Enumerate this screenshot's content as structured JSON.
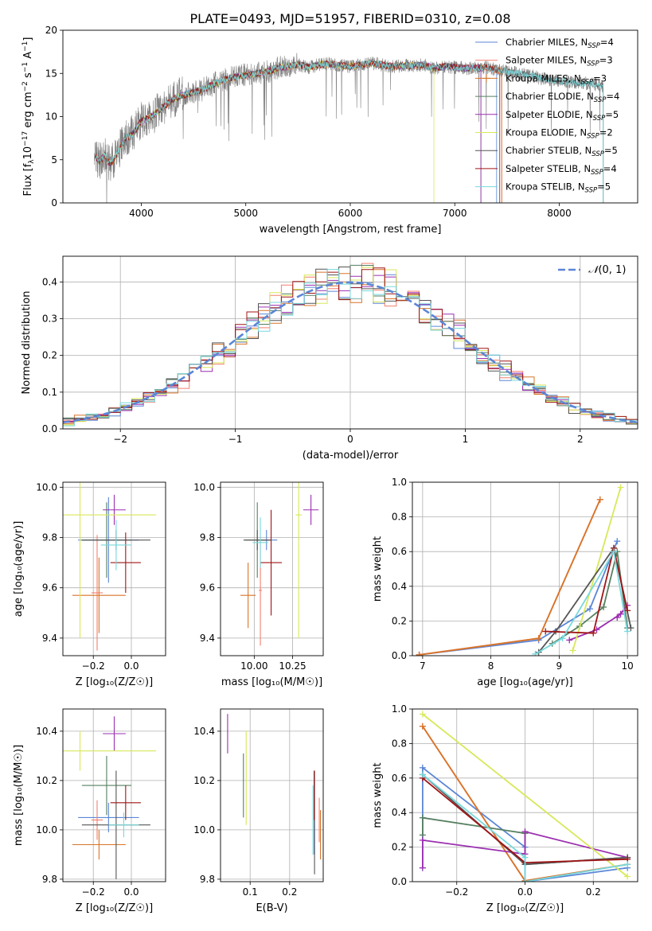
{
  "figure": {
    "title": "PLATE=0493, MJD=51957, FIBERID=0310, z=0.08"
  },
  "colors": {
    "chabrier_miles": "#5b86d6",
    "salpeter_miles": "#f47f6e",
    "kroupa_miles": "#d87428",
    "chabrier_elodie": "#567f60",
    "salpeter_elodie": "#9b2fb0",
    "kroupa_elodie": "#d8e85a",
    "chabrier_stelib": "#555555",
    "salpeter_stelib": "#a01416",
    "kroupa_stelib": "#78d8dc",
    "spectrum": "#808080",
    "gaussian": "#5b86d6"
  },
  "legend": {
    "entries": [
      {
        "prefix": "Chabrier MILES, N",
        "sub": "SSP",
        "suffix": "=4",
        "color": "#5b86d6",
        "marker": "none"
      },
      {
        "prefix": "Salpeter MILES, N",
        "sub": "SSP",
        "suffix": "=3",
        "color": "#f47f6e",
        "marker": "none"
      },
      {
        "prefix": "Kroupa MILES, N",
        "sub": "SSP",
        "suffix": "=3",
        "color": "#d87428",
        "marker": "plus"
      },
      {
        "prefix": "Chabrier ELODIE, N",
        "sub": "SSP",
        "suffix": "=4",
        "color": "#567f60",
        "marker": "none"
      },
      {
        "prefix": "Salpeter ELODIE, N",
        "sub": "SSP",
        "suffix": "=5",
        "color": "#9b2fb0",
        "marker": "none"
      },
      {
        "prefix": "Kroupa ELODIE, N",
        "sub": "SSP",
        "suffix": "=2",
        "color": "#d8e85a",
        "marker": "none"
      },
      {
        "prefix": "Chabrier STELIB, N",
        "sub": "SSP",
        "suffix": "=5",
        "color": "#555555",
        "marker": "none"
      },
      {
        "prefix": "Salpeter STELIB, N",
        "sub": "SSP",
        "suffix": "=4",
        "color": "#a01416",
        "marker": "none"
      },
      {
        "prefix": "Kroupa STELIB, N",
        "sub": "SSP",
        "suffix": "=5",
        "color": "#78d8dc",
        "marker": "none"
      }
    ]
  },
  "chart_data": [
    {
      "id": "spectrum",
      "type": "line",
      "title": "PLATE=0493, MJD=51957, FIBERID=0310, z=0.08",
      "xlabel": "wavelength [Angstrom, rest frame]",
      "ylabel": {
        "a": "Flux [f",
        "b": "λ",
        "c": "10",
        "d": "−17",
        "e": " erg cm",
        "f": "−2",
        "g": " s",
        "h": "−1",
        "i": " A",
        "j": "−1",
        "k": "]"
      },
      "xlim": [
        3250,
        8750
      ],
      "ylim": [
        0,
        20
      ],
      "xticks": [
        4000,
        5000,
        6000,
        7000,
        8000
      ],
      "yticks": [
        0,
        5,
        10,
        15,
        20
      ],
      "grid": false,
      "legend_position": "upper right",
      "x": [
        3550,
        3600,
        3650,
        3700,
        3750,
        3800,
        3850,
        3900,
        3950,
        4000,
        4100,
        4200,
        4300,
        4400,
        4500,
        4600,
        4700,
        4800,
        4900,
        5000,
        5100,
        5200,
        5300,
        5400,
        5500,
        5600,
        5700,
        5800,
        5900,
        6000,
        6100,
        6200,
        6300,
        6400,
        6500,
        6600,
        6700,
        6800,
        6900,
        7000,
        7100,
        7200,
        7300,
        7400,
        7500,
        7600,
        7700,
        7800,
        7900,
        8000,
        8100,
        8200,
        8300,
        8400
      ],
      "flux": [
        5.5,
        4.8,
        5.5,
        4.5,
        5.2,
        6.5,
        7.5,
        7.8,
        8.5,
        9.5,
        10.0,
        11.0,
        12.0,
        12.5,
        12.8,
        13.2,
        13.8,
        14.3,
        14.6,
        14.8,
        15.0,
        15.2,
        15.6,
        15.8,
        16.0,
        15.7,
        16.0,
        16.1,
        15.9,
        15.8,
        16.0,
        16.2,
        16.0,
        15.8,
        15.9,
        15.9,
        16.0,
        15.6,
        15.8,
        15.7,
        15.6,
        15.6,
        15.7,
        15.4,
        15.2,
        15.0,
        14.8,
        14.5,
        14.3,
        14.1,
        14.0,
        13.9,
        13.8,
        13.6
      ]
    },
    {
      "id": "residuals",
      "type": "histogram",
      "xlabel": "(data-model)/error",
      "ylabel": "Normed distribution",
      "xlim": [
        -2.5,
        2.5
      ],
      "ylim": [
        0,
        0.47
      ],
      "xticks": [
        -2,
        -1,
        0,
        1,
        2
      ],
      "yticks": [
        0.0,
        0.1,
        0.2,
        0.3,
        0.4
      ],
      "grid": true,
      "legend_position": "upper right",
      "gaussian_label_pre": "𝒩",
      "gaussian_label_post": "(0, 1)",
      "bin_width": 0.1
    },
    {
      "id": "age_vs_Z",
      "type": "scatter",
      "xlabel": "Z [log₁₀(Z/Z☉)]",
      "ylabel": "age  [log₁₀(age/yr)]",
      "xlim": [
        -0.36,
        0.18
      ],
      "ylim": [
        9.33,
        10.02
      ],
      "xticks": [
        -0.2,
        0.0
      ],
      "yticks": [
        9.4,
        9.6,
        9.8,
        10.0
      ],
      "grid": true,
      "points": [
        {
          "x": -0.12,
          "xerr": 0.16,
          "y": 9.79,
          "yerr": 0.17,
          "color": "#5b86d6"
        },
        {
          "x": -0.18,
          "xerr": 0.03,
          "y": 9.58,
          "yerr": 0.23,
          "color": "#f47f6e"
        },
        {
          "x": -0.17,
          "xerr": 0.14,
          "y": 9.57,
          "yerr": 0.15,
          "color": "#d87428"
        },
        {
          "x": -0.13,
          "xerr": 0.13,
          "y": 9.79,
          "yerr": 0.15,
          "color": "#567f60"
        },
        {
          "x": -0.09,
          "xerr": 0.06,
          "y": 9.91,
          "yerr": 0.06,
          "color": "#9b2fb0"
        },
        {
          "x": -0.27,
          "xerr": 0.4,
          "y": 9.89,
          "yerr": 0.49,
          "color": "#d8e85a"
        },
        {
          "x": -0.08,
          "xerr": 0.18,
          "y": 9.79,
          "yerr": 0.04,
          "color": "#555555"
        },
        {
          "x": -0.03,
          "xerr": 0.08,
          "y": 9.7,
          "yerr": 0.12,
          "color": "#a01416"
        },
        {
          "x": -0.08,
          "xerr": 0.08,
          "y": 9.77,
          "yerr": 0.1,
          "color": "#78d8dc"
        }
      ]
    },
    {
      "id": "age_vs_mass",
      "type": "scatter",
      "xlabel": "mass [log₁₀(M/M☉)]",
      "ylabel": "",
      "xlim": [
        9.78,
        10.45
      ],
      "ylim": [
        9.33,
        10.02
      ],
      "xticks": [
        10.0,
        10.25
      ],
      "yticks": [
        9.4,
        9.6,
        9.8,
        10.0
      ],
      "grid": true,
      "points": [
        {
          "x": 10.08,
          "xerr": 0.07,
          "y": 9.79,
          "yerr": 0.04,
          "color": "#5b86d6"
        },
        {
          "x": 10.04,
          "xerr": 0.01,
          "y": 9.59,
          "yerr": 0.22,
          "color": "#f47f6e"
        },
        {
          "x": 9.96,
          "xerr": 0.05,
          "y": 9.57,
          "yerr": 0.13,
          "color": "#d87428"
        },
        {
          "x": 10.02,
          "xerr": 0.08,
          "y": 9.79,
          "yerr": 0.15,
          "color": "#567f60"
        },
        {
          "x": 10.37,
          "xerr": 0.05,
          "y": 9.91,
          "yerr": 0.06,
          "color": "#9b2fb0"
        },
        {
          "x": 10.29,
          "xerr": 0.02,
          "y": 9.89,
          "yerr": 0.49,
          "color": "#d8e85a"
        },
        {
          "x": 10.02,
          "xerr": 0.09,
          "y": 9.79,
          "yerr": 0.04,
          "color": "#555555"
        },
        {
          "x": 10.11,
          "xerr": 0.07,
          "y": 9.7,
          "yerr": 0.21,
          "color": "#a01416"
        },
        {
          "x": 10.04,
          "xerr": 0.05,
          "y": 9.78,
          "yerr": 0.1,
          "color": "#78d8dc"
        }
      ]
    },
    {
      "id": "weights_vs_age",
      "type": "line",
      "xlabel": "age  [log₁₀(age/yr)]",
      "ylabel": "mass weight",
      "xlim": [
        6.85,
        10.15
      ],
      "ylim": [
        0,
        1.0
      ],
      "xticks": [
        7,
        8,
        9,
        10
      ],
      "yticks": [
        0.0,
        0.2,
        0.4,
        0.6,
        0.8,
        1.0
      ],
      "grid": true,
      "series": [
        {
          "color": "#5b86d6",
          "x": [
            6.95,
            8.7,
            9.45,
            9.85
          ],
          "y": [
            0.005,
            0.09,
            0.27,
            0.66
          ]
        },
        {
          "color": "#f47f6e",
          "x": [
            6.95,
            8.7,
            9.6
          ],
          "y": [
            0.005,
            0.1,
            0.9
          ]
        },
        {
          "color": "#d87428",
          "x": [
            6.95,
            8.7,
            9.6
          ],
          "y": [
            0.005,
            0.1,
            0.9
          ]
        },
        {
          "color": "#567f60",
          "x": [
            8.9,
            9.3,
            9.65,
            9.85,
            10.0
          ],
          "y": [
            0.07,
            0.17,
            0.28,
            0.6,
            0.16
          ]
        },
        {
          "color": "#9b2fb0",
          "x": [
            9.15,
            9.55,
            9.9,
            10.0,
            9.85
          ],
          "y": [
            0.09,
            0.15,
            0.24,
            0.29,
            0.22
          ]
        },
        {
          "color": "#d8e85a",
          "x": [
            9.2,
            9.9
          ],
          "y": [
            0.03,
            0.97
          ]
        },
        {
          "color": "#555555",
          "x": [
            8.7,
            8.95,
            9.8,
            10.05
          ],
          "y": [
            0.02,
            0.14,
            0.62,
            0.16
          ]
        },
        {
          "color": "#a01416",
          "x": [
            8.8,
            9.5,
            9.8,
            10.0
          ],
          "y": [
            0.14,
            0.13,
            0.62,
            0.26
          ]
        },
        {
          "color": "#78d8dc",
          "x": [
            8.65,
            9.05,
            9.8,
            10.0
          ],
          "y": [
            0.01,
            0.1,
            0.6,
            0.14
          ]
        }
      ]
    },
    {
      "id": "mass_vs_Z",
      "type": "scatter",
      "xlabel": "Z [log₁₀(Z/Z☉)]",
      "ylabel": "mass [log₁₀(M/M☉)]",
      "xlim": [
        -0.36,
        0.18
      ],
      "ylim": [
        9.79,
        10.49
      ],
      "xticks": [
        -0.2,
        0.0
      ],
      "yticks": [
        9.8,
        10.0,
        10.2,
        10.4
      ],
      "grid": true,
      "points": [
        {
          "x": -0.12,
          "xerr": 0.16,
          "y": 10.05,
          "yerr": 0.06,
          "color": "#5b86d6"
        },
        {
          "x": -0.18,
          "xerr": 0.03,
          "y": 10.04,
          "yerr": 0.08,
          "color": "#f47f6e"
        },
        {
          "x": -0.17,
          "xerr": 0.14,
          "y": 9.94,
          "yerr": 0.06,
          "color": "#d87428"
        },
        {
          "x": -0.13,
          "xerr": 0.13,
          "y": 10.18,
          "yerr": 0.12,
          "color": "#567f60"
        },
        {
          "x": -0.09,
          "xerr": 0.06,
          "y": 10.39,
          "yerr": 0.07,
          "color": "#9b2fb0"
        },
        {
          "x": -0.27,
          "xerr": 0.4,
          "y": 10.32,
          "yerr": 0.08,
          "color": "#d8e85a"
        },
        {
          "x": -0.08,
          "xerr": 0.18,
          "y": 10.02,
          "yerr": 0.22,
          "color": "#555555"
        },
        {
          "x": -0.03,
          "xerr": 0.08,
          "y": 10.11,
          "yerr": 0.07,
          "color": "#a01416"
        },
        {
          "x": -0.04,
          "xerr": 0.08,
          "y": 10.02,
          "yerr": 0.05,
          "color": "#78d8dc"
        }
      ]
    },
    {
      "id": "mass_vs_ebv",
      "type": "scatter",
      "xlabel": "E(B-V)",
      "ylabel": "",
      "xlim": [
        0.025,
        0.285
      ],
      "ylim": [
        9.79,
        10.49
      ],
      "xticks": [
        0.1,
        0.2
      ],
      "yticks": [
        9.8,
        10.0,
        10.2,
        10.4
      ],
      "grid": true,
      "points": [
        {
          "x": 0.262,
          "xerr": 0.0,
          "y": 10.05,
          "yerr": 0.15,
          "color": "#5b86d6"
        },
        {
          "x": 0.275,
          "xerr": 0.0,
          "y": 10.04,
          "yerr": 0.09,
          "color": "#f47f6e"
        },
        {
          "x": 0.278,
          "xerr": 0.0,
          "y": 9.98,
          "yerr": 0.1,
          "color": "#d87428"
        },
        {
          "x": 0.083,
          "xerr": 0.0,
          "y": 10.18,
          "yerr": 0.13,
          "color": "#567f60"
        },
        {
          "x": 0.043,
          "xerr": 0.0,
          "y": 10.39,
          "yerr": 0.08,
          "color": "#9b2fb0"
        },
        {
          "x": 0.09,
          "xerr": 0.0,
          "y": 10.21,
          "yerr": 0.19,
          "color": "#d8e85a"
        },
        {
          "x": 0.263,
          "xerr": 0.0,
          "y": 10.03,
          "yerr": 0.21,
          "color": "#555555"
        },
        {
          "x": 0.262,
          "xerr": 0.0,
          "y": 10.14,
          "yerr": 0.1,
          "color": "#a01416"
        },
        {
          "x": 0.259,
          "xerr": 0.0,
          "y": 10.04,
          "yerr": 0.14,
          "color": "#78d8dc"
        }
      ]
    },
    {
      "id": "weights_vs_Z",
      "type": "line",
      "xlabel": "Z [log₁₀(Z/Z☉)]",
      "ylabel": "mass weight",
      "xlim": [
        -0.33,
        0.33
      ],
      "ylim": [
        0,
        1.0
      ],
      "xticks": [
        -0.2,
        0.0,
        0.2
      ],
      "yticks": [
        0.0,
        0.2,
        0.4,
        0.6,
        0.8,
        1.0
      ],
      "grid": true,
      "series": [
        {
          "color": "#5b86d6",
          "x": [
            -0.3,
            -0.3,
            0.0,
            0.0,
            0.3
          ],
          "y": [
            0.08,
            0.66,
            0.2,
            0.0,
            0.08
          ]
        },
        {
          "color": "#f47f6e",
          "x": [
            -0.3,
            0.0,
            0.3
          ],
          "y": [
            0.9,
            0.005,
            0.1
          ]
        },
        {
          "color": "#d87428",
          "x": [
            -0.3,
            0.0,
            0.3
          ],
          "y": [
            0.9,
            0.005,
            0.1
          ]
        },
        {
          "color": "#567f60",
          "x": [
            -0.3,
            -0.3,
            0.0,
            0.0,
            0.3
          ],
          "y": [
            0.27,
            0.37,
            0.28,
            0.1,
            0.14
          ]
        },
        {
          "color": "#9b2fb0",
          "x": [
            -0.3,
            -0.3,
            0.0,
            0.0,
            0.3
          ],
          "y": [
            0.08,
            0.24,
            0.16,
            0.29,
            0.14
          ]
        },
        {
          "color": "#d8e85a",
          "x": [
            -0.3,
            0.3
          ],
          "y": [
            0.97,
            0.03
          ]
        },
        {
          "color": "#555555",
          "x": [
            -0.3,
            0.0,
            0.3
          ],
          "y": [
            0.62,
            0.1,
            0.14
          ]
        },
        {
          "color": "#a01416",
          "x": [
            -0.3,
            0.0,
            0.3
          ],
          "y": [
            0.6,
            0.11,
            0.13
          ]
        },
        {
          "color": "#78d8dc",
          "x": [
            -0.3,
            0.0,
            0.0,
            0.3
          ],
          "y": [
            0.62,
            0.14,
            0.0,
            0.1
          ]
        }
      ]
    }
  ]
}
